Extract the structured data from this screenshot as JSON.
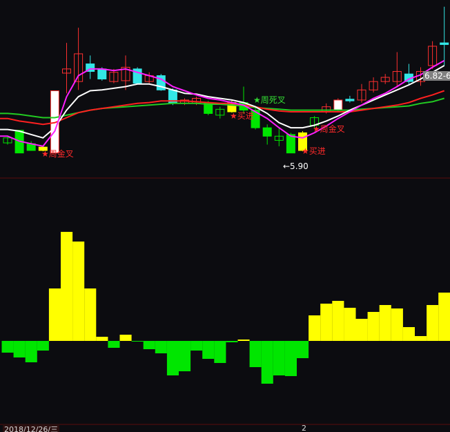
{
  "colors": {
    "background": "#0c0c10",
    "up": "#ff3030",
    "down": "#00e600",
    "cyan": "#33e6e6",
    "yellow": "#ffff00",
    "white": "#ffffff",
    "ma_white": "#ffffff",
    "ma_magenta": "#ff20ff",
    "ma_red": "#ff2020",
    "ma_green": "#22cc22",
    "divider": "#5a0c0c"
  },
  "chart_data": [
    {
      "type": "candlestick",
      "candles": [
        {
          "s": "gh",
          "o": 6.08,
          "c": 6.02,
          "h": 6.1,
          "l": 6.0
        },
        {
          "s": "g",
          "o": 6.17,
          "c": 5.9,
          "h": 6.17,
          "l": 5.9
        },
        {
          "s": "g",
          "o": 6.01,
          "c": 5.93,
          "h": 6.04,
          "l": 5.93
        },
        {
          "s": "y",
          "o": 5.93,
          "c": 5.97,
          "h": 5.98,
          "l": 5.92
        },
        {
          "s": "w",
          "o": 5.9,
          "c": 6.64,
          "h": 6.64,
          "l": 5.9
        },
        {
          "s": "r",
          "o": 6.85,
          "c": 6.9,
          "h": 7.21,
          "l": 6.61
        },
        {
          "s": "r",
          "o": 6.75,
          "c": 7.08,
          "h": 7.39,
          "l": 6.65
        },
        {
          "s": "c",
          "o": 6.96,
          "c": 6.87,
          "h": 7.06,
          "l": 6.78
        },
        {
          "s": "c",
          "o": 6.9,
          "c": 6.78,
          "h": 6.92,
          "l": 6.76
        },
        {
          "s": "r",
          "o": 6.75,
          "c": 6.86,
          "h": 6.9,
          "l": 6.73
        },
        {
          "s": "r",
          "o": 6.76,
          "c": 6.92,
          "h": 7.06,
          "l": 6.65
        },
        {
          "s": "c",
          "o": 6.9,
          "c": 6.73,
          "h": 6.92,
          "l": 6.72
        },
        {
          "s": "r",
          "o": 6.75,
          "c": 6.82,
          "h": 6.86,
          "l": 6.73
        },
        {
          "s": "c",
          "o": 6.82,
          "c": 6.65,
          "h": 6.84,
          "l": 6.64
        },
        {
          "s": "c",
          "o": 6.65,
          "c": 6.49,
          "h": 6.67,
          "l": 6.47
        },
        {
          "s": "r",
          "o": 6.49,
          "c": 6.53,
          "h": 6.55,
          "l": 6.47
        },
        {
          "s": "r",
          "o": 6.49,
          "c": 6.55,
          "h": 6.57,
          "l": 6.47
        },
        {
          "s": "g",
          "o": 6.5,
          "c": 6.37,
          "h": 6.52,
          "l": 6.35
        },
        {
          "s": "gh",
          "o": 6.42,
          "c": 6.35,
          "h": 6.45,
          "l": 6.31
        },
        {
          "s": "y",
          "o": 6.39,
          "c": 6.5,
          "h": 6.52,
          "l": 6.38
        },
        {
          "s": "g",
          "o": 6.5,
          "c": 6.41,
          "h": 6.69,
          "l": 6.37
        },
        {
          "s": "g",
          "o": 6.41,
          "c": 6.2,
          "h": 6.43,
          "l": 6.18
        },
        {
          "s": "g",
          "o": 6.2,
          "c": 6.1,
          "h": 6.24,
          "l": 6.0
        },
        {
          "s": "gh",
          "o": 6.1,
          "c": 6.05,
          "h": 6.2,
          "l": 5.98
        },
        {
          "s": "g",
          "o": 6.12,
          "c": 5.9,
          "h": 6.14,
          "l": 5.9
        },
        {
          "s": "y",
          "o": 5.93,
          "c": 6.14,
          "h": 6.16,
          "l": 5.92
        },
        {
          "s": "gh",
          "o": 6.32,
          "c": 6.23,
          "h": 6.34,
          "l": 6.2
        },
        {
          "s": "r",
          "o": 6.39,
          "c": 6.45,
          "h": 6.49,
          "l": 6.37
        },
        {
          "s": "w",
          "o": 6.41,
          "c": 6.53,
          "h": 6.55,
          "l": 6.39
        },
        {
          "s": "c",
          "o": 6.54,
          "c": 6.52,
          "h": 6.58,
          "l": 6.5
        },
        {
          "s": "r",
          "o": 6.53,
          "c": 6.65,
          "h": 6.72,
          "l": 6.5
        },
        {
          "s": "r",
          "o": 6.65,
          "c": 6.75,
          "h": 6.8,
          "l": 6.62
        },
        {
          "s": "r",
          "o": 6.75,
          "c": 6.8,
          "h": 6.84,
          "l": 6.72
        },
        {
          "s": "r",
          "o": 6.75,
          "c": 6.87,
          "h": 7.1,
          "l": 6.69
        },
        {
          "s": "c",
          "o": 6.84,
          "c": 6.75,
          "h": 6.96,
          "l": 6.72
        },
        {
          "s": "r",
          "o": 6.75,
          "c": 6.87,
          "h": 6.92,
          "l": 6.7
        },
        {
          "s": "r",
          "o": 6.94,
          "c": 7.17,
          "h": 7.23,
          "l": 6.9
        },
        {
          "s": "c",
          "o": 7.21,
          "c": 7.19,
          "h": 7.64,
          "l": 6.94
        }
      ],
      "lines": {
        "white": [
          6.18,
          6.16,
          6.12,
          6.08,
          6.2,
          6.41,
          6.57,
          6.64,
          6.65,
          6.67,
          6.69,
          6.72,
          6.72,
          6.69,
          6.65,
          6.61,
          6.6,
          6.57,
          6.55,
          6.53,
          6.5,
          6.45,
          6.37,
          6.26,
          6.2,
          6.2,
          6.23,
          6.28,
          6.34,
          6.41,
          6.47,
          6.53,
          6.59,
          6.65,
          6.71,
          6.78,
          6.86,
          6.94
        ],
        "magenta": [
          6.1,
          6.04,
          6.01,
          5.98,
          6.16,
          6.57,
          6.82,
          6.9,
          6.9,
          6.88,
          6.9,
          6.86,
          6.82,
          6.78,
          6.69,
          6.64,
          6.59,
          6.55,
          6.53,
          6.5,
          6.47,
          6.39,
          6.31,
          6.2,
          6.1,
          6.08,
          6.14,
          6.22,
          6.31,
          6.39,
          6.47,
          6.55,
          6.61,
          6.69,
          6.78,
          6.83,
          6.92,
          7.0
        ],
        "red": [
          6.31,
          6.28,
          6.26,
          6.24,
          6.26,
          6.32,
          6.38,
          6.41,
          6.43,
          6.45,
          6.47,
          6.49,
          6.5,
          6.52,
          6.52,
          6.52,
          6.51,
          6.5,
          6.49,
          6.49,
          6.47,
          6.45,
          6.42,
          6.4,
          6.39,
          6.39,
          6.39,
          6.39,
          6.39,
          6.39,
          6.41,
          6.43,
          6.45,
          6.47,
          6.5,
          6.55,
          6.59,
          6.64
        ],
        "green": [
          6.37,
          6.36,
          6.34,
          6.32,
          6.32,
          6.35,
          6.38,
          6.41,
          6.43,
          6.44,
          6.45,
          6.46,
          6.47,
          6.48,
          6.49,
          6.49,
          6.49,
          6.48,
          6.48,
          6.47,
          6.46,
          6.44,
          6.43,
          6.42,
          6.41,
          6.41,
          6.41,
          6.41,
          6.41,
          6.41,
          6.42,
          6.43,
          6.44,
          6.45,
          6.46,
          6.49,
          6.51,
          6.55
        ]
      },
      "annotations": {
        "golden_cross_1": "★周金叉",
        "buy_1": "★买进",
        "death_cross": "★周死叉",
        "golden_cross_2": "★周金叉",
        "buy_2": "★买进",
        "low_marker": "←5.90",
        "price_tag": "6.82-6"
      }
    },
    {
      "type": "bar",
      "values": [
        -17,
        -24,
        -31,
        -14,
        76,
        158,
        144,
        76,
        6,
        -10,
        9,
        -1,
        -12,
        -18,
        -50,
        -44,
        -14,
        -26,
        -32,
        -2,
        2,
        -38,
        -62,
        -50,
        -51,
        -25,
        37,
        54,
        58,
        48,
        32,
        42,
        52,
        47,
        20,
        7,
        52,
        70
      ],
      "positive_color": "yellow",
      "negative_color": "green"
    }
  ],
  "footer": {
    "date": "2018/12/26/三",
    "number": "2"
  }
}
